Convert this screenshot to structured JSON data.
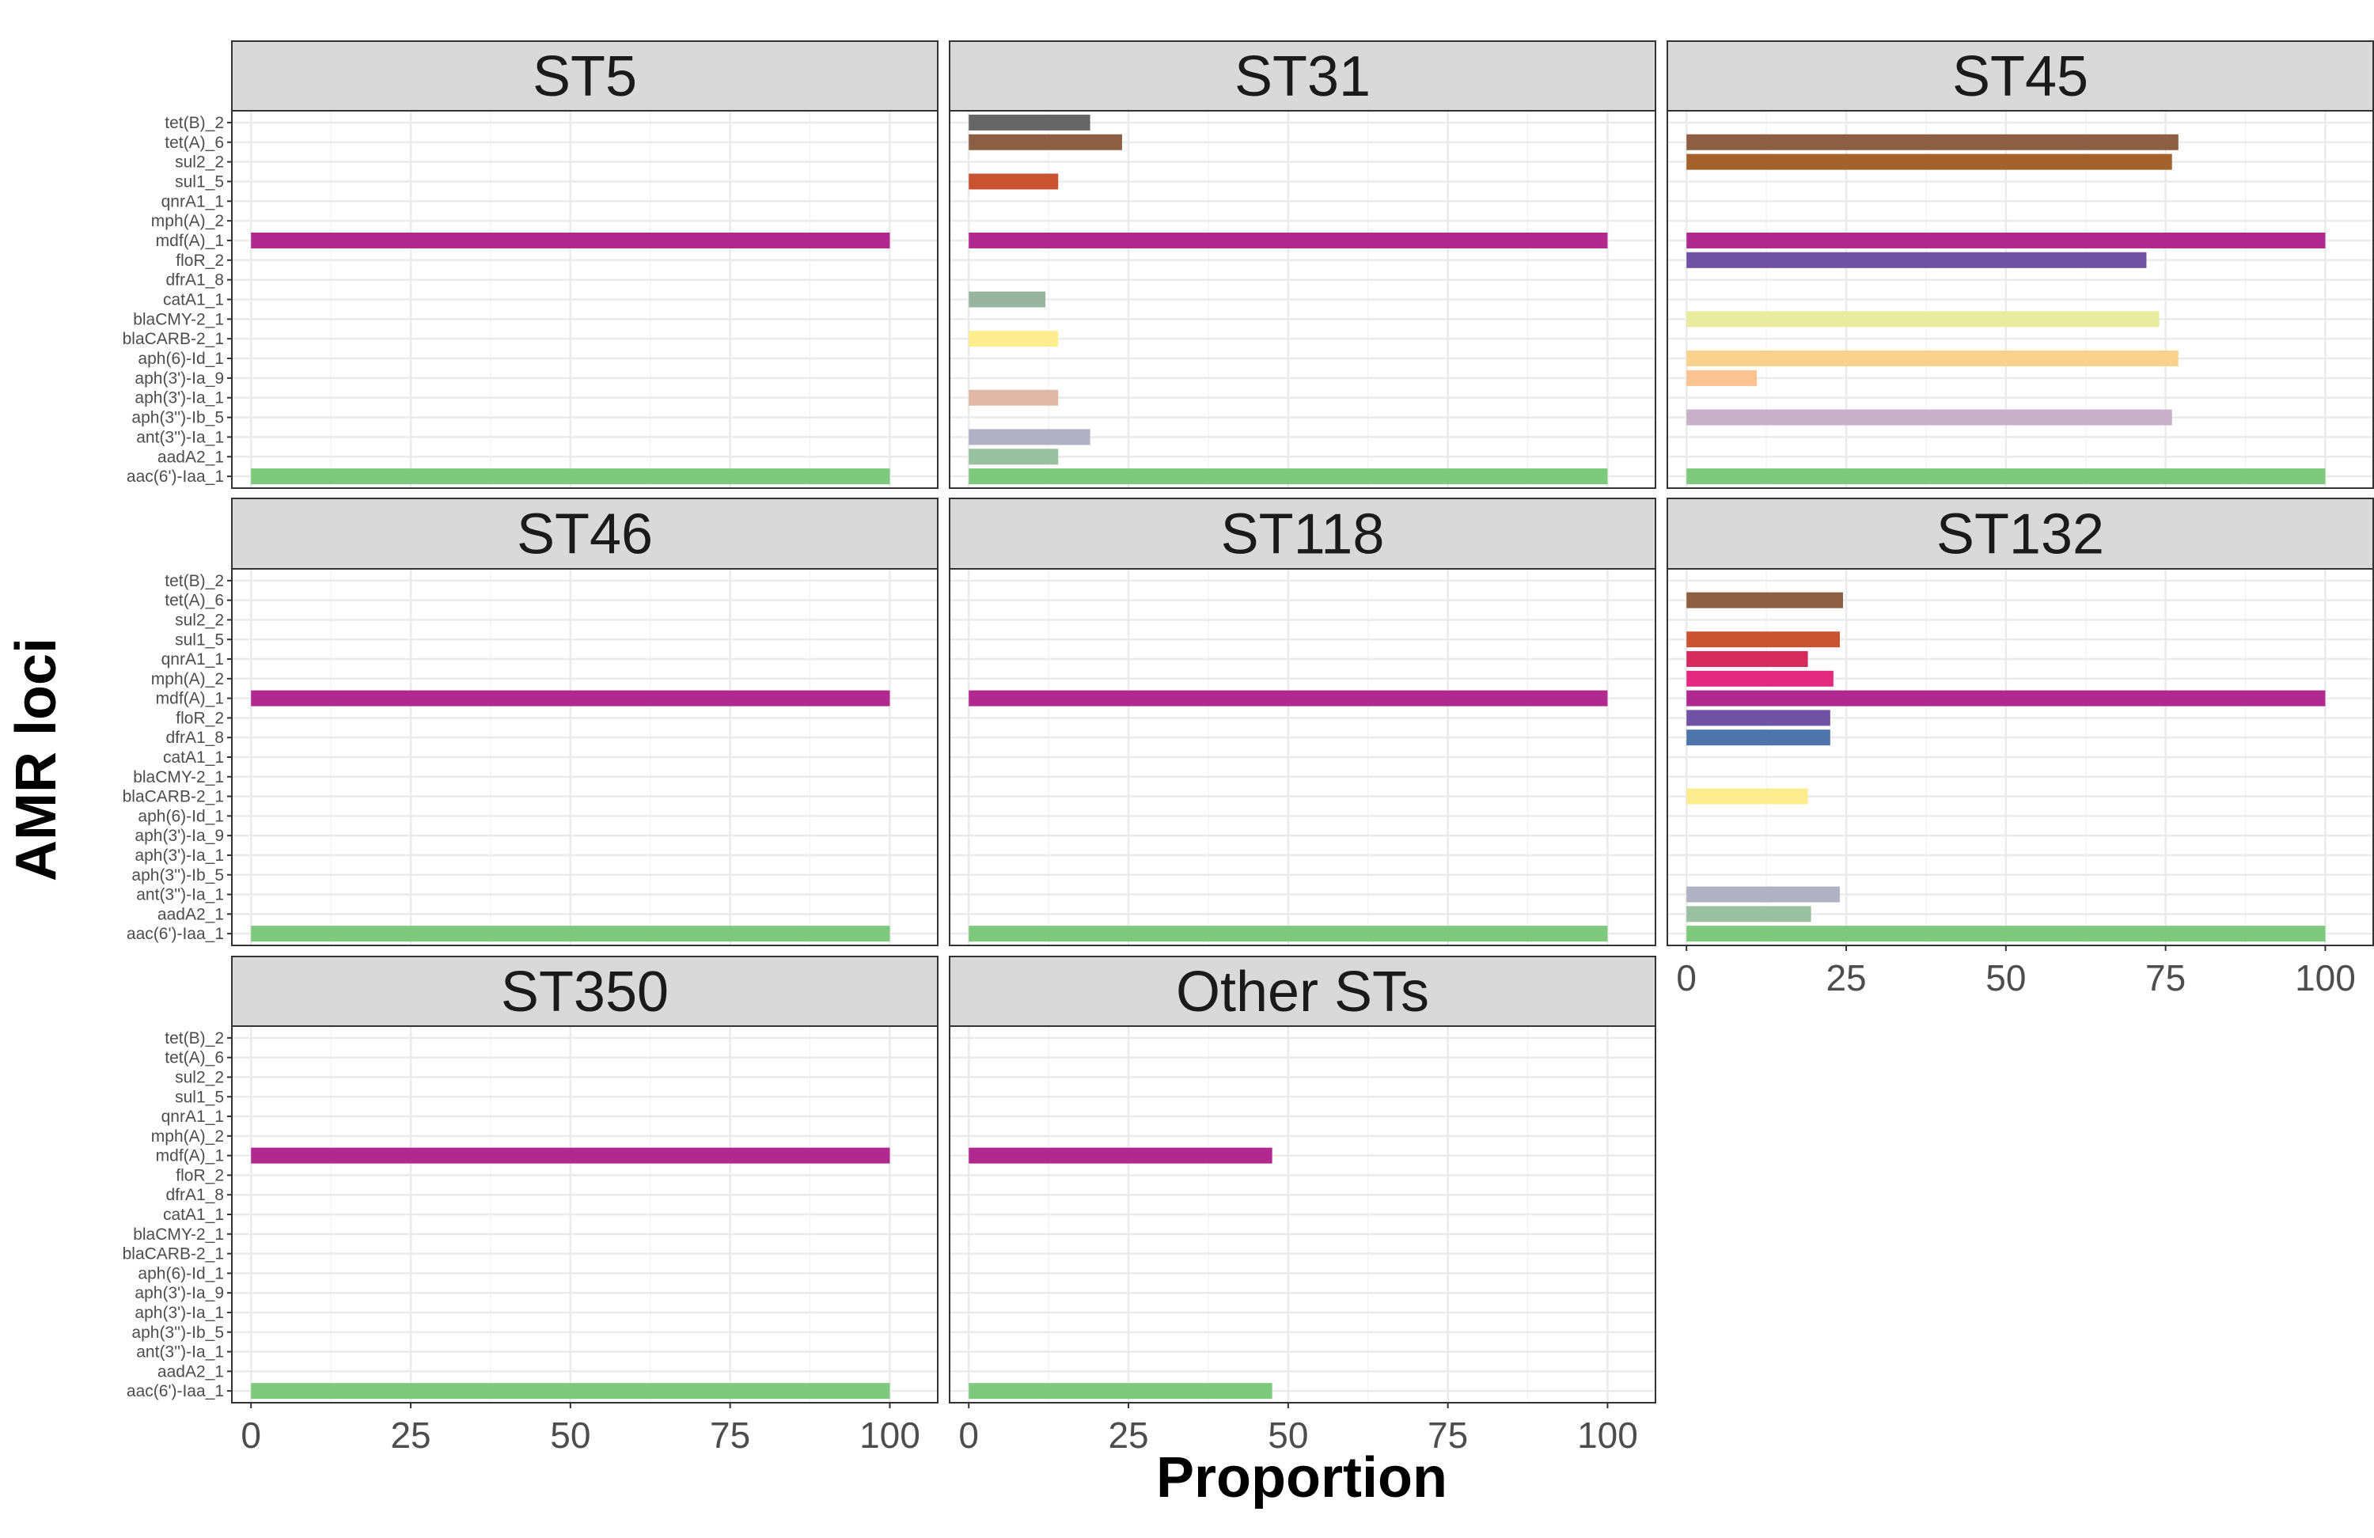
{
  "chart_data": {
    "type": "bar",
    "orientation": "horizontal",
    "facet_layout": "3x3 grid, shared y axis",
    "xlabel": "Proportion",
    "ylabel": "AMR loci",
    "xlim": [
      0,
      110
    ],
    "xticks": [
      "0",
      "25",
      "50",
      "75",
      "100"
    ],
    "grid": true,
    "categories": [
      "tet(B)_2",
      "tet(A)_6",
      "sul2_2",
      "sul1_5",
      "qnrA1_1",
      "mph(A)_2",
      "mdf(A)_1",
      "floR_2",
      "dfrA1_8",
      "catA1_1",
      "blaCMY-2_1",
      "blaCARB-2_1",
      "aph(6)-Id_1",
      "aph(3')-Ia_9",
      "aph(3')-Ia_1",
      "aph(3'')-Ib_5",
      "ant(3'')-Ia_1",
      "aadA2_1",
      "aac(6')-Iaa_1"
    ],
    "colors": {
      "tet(B)_2": "#666666",
      "tet(A)_6": "#8c5f44",
      "sul2_2": "#a5612b",
      "sul1_5": "#c95330",
      "qnrA1_1": "#d62a5c",
      "mph(A)_2": "#e42a7e",
      "mdf(A)_1": "#b0298f",
      "floR_2": "#6f52a4",
      "dfrA1_8": "#4d75ab",
      "catA1_1": "#9ab59f",
      "blaCMY-2_1": "#e8ec9e",
      "blaCARB-2_1": "#fded8e",
      "aph(6)-Id_1": "#fbd28d",
      "aph(3')-Ia_9": "#fbc391",
      "aph(3')-Ia_1": "#e1b8a5",
      "aph(3'')-Ib_5": "#c8b0c9",
      "ant(3'')-Ia_1": "#b0b1c3",
      "aadA2_1": "#99c0a1",
      "aac(6')-Iaa_1": "#7fc97f"
    },
    "panels": [
      {
        "label": "ST5",
        "values": {
          "mdf(A)_1": 100,
          "aac(6')-Iaa_1": 100
        }
      },
      {
        "label": "ST31",
        "values": {
          "tet(B)_2": 19,
          "tet(A)_6": 24,
          "sul1_5": 14,
          "mdf(A)_1": 100,
          "catA1_1": 12,
          "blaCARB-2_1": 14,
          "aph(3')-Ia_1": 14,
          "ant(3'')-Ia_1": 19,
          "aadA2_1": 14,
          "aac(6')-Iaa_1": 100
        }
      },
      {
        "label": "ST45",
        "values": {
          "tet(A)_6": 77,
          "sul2_2": 76,
          "mdf(A)_1": 100,
          "floR_2": 72,
          "blaCMY-2_1": 74,
          "aph(6)-Id_1": 77,
          "aph(3')-Ia_9": 11,
          "aph(3'')-Ib_5": 76,
          "aac(6')-Iaa_1": 100
        }
      },
      {
        "label": "ST46",
        "values": {
          "mdf(A)_1": 100,
          "aac(6')-Iaa_1": 100
        }
      },
      {
        "label": "ST118",
        "values": {
          "mdf(A)_1": 100,
          "aac(6')-Iaa_1": 100
        }
      },
      {
        "label": "ST132",
        "values": {
          "tet(A)_6": 24.5,
          "sul1_5": 24,
          "qnrA1_1": 19,
          "mph(A)_2": 23,
          "mdf(A)_1": 100,
          "floR_2": 22.5,
          "dfrA1_8": 22.5,
          "blaCARB-2_1": 19,
          "ant(3'')-Ia_1": 24,
          "aadA2_1": 19.5,
          "aac(6')-Iaa_1": 100
        }
      },
      {
        "label": "ST350",
        "values": {
          "mdf(A)_1": 100,
          "aac(6')-Iaa_1": 100
        }
      },
      {
        "label": "Other STs",
        "values": {
          "mdf(A)_1": 47.5,
          "aac(6')-Iaa_1": 47.5
        }
      }
    ]
  }
}
